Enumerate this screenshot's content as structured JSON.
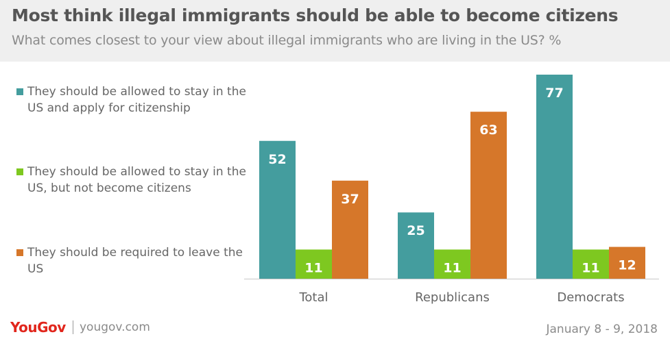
{
  "header": {
    "title": "Most think illegal immigrants should be able to become citizens",
    "subtitle": "What comes closest to your view about illegal immigrants who are living in the US? %"
  },
  "legend": [
    {
      "label": "They should be allowed to stay in the US and apply for citizenship",
      "color": "#449d9e"
    },
    {
      "label": "They should be allowed to stay in the US, but not become citizens",
      "color": "#7ec820"
    },
    {
      "label": "They should be required to leave the US",
      "color": "#d6772a"
    }
  ],
  "chart_data": {
    "type": "bar",
    "title": "Most think illegal immigrants should be able to become citizens",
    "subtitle": "What comes closest to your view about illegal immigrants who are living in the US? %",
    "categories": [
      "Total",
      "Republicans",
      "Democrats"
    ],
    "series": [
      {
        "name": "They should be allowed to stay in the US and apply for citizenship",
        "values": [
          52,
          25,
          77
        ],
        "color": "#449d9e"
      },
      {
        "name": "They should be allowed to stay in the US, but not become citizens",
        "values": [
          11,
          11,
          11
        ],
        "color": "#7ec820"
      },
      {
        "name": "They should be required to leave the US",
        "values": [
          37,
          63,
          12
        ],
        "color": "#d6772a"
      }
    ],
    "ylim": [
      0,
      80
    ],
    "grid": false,
    "legend_position": "left"
  },
  "footer": {
    "logo": "YouGov",
    "site": "yougov.com",
    "date": "January 8 - 9, 2018"
  }
}
